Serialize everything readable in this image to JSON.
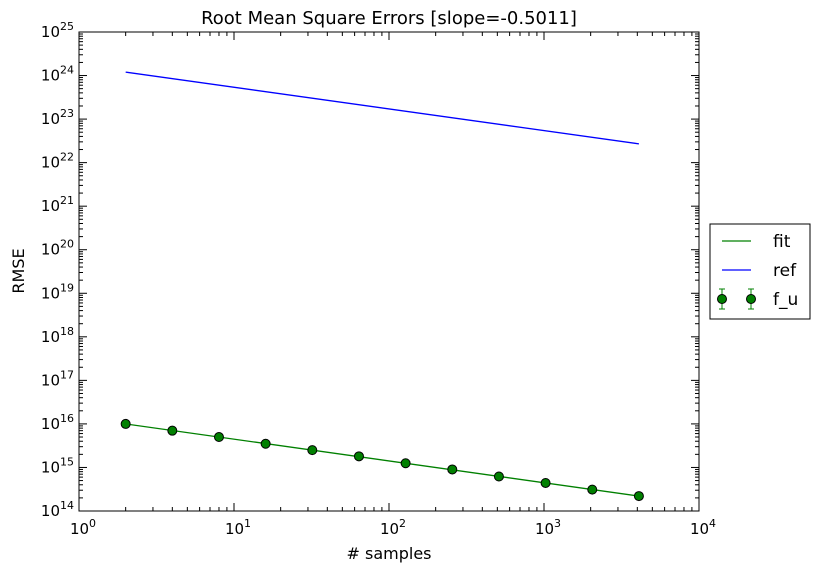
{
  "chart_data": {
    "type": "scatter",
    "title": "Root Mean Square Errors [slope=-0.5011]",
    "xlabel": "# samples",
    "ylabel": "RMSE",
    "xscale": "log",
    "yscale": "log",
    "xlim": [
      1,
      10000
    ],
    "ylim": [
      100000000000000.0,
      1e+25
    ],
    "grid": false,
    "legend_placement": "right, outside plot",
    "x_ticks": [
      {
        "base": "10",
        "exp": "0",
        "value": 1
      },
      {
        "base": "10",
        "exp": "1",
        "value": 10
      },
      {
        "base": "10",
        "exp": "2",
        "value": 100
      },
      {
        "base": "10",
        "exp": "3",
        "value": 1000
      },
      {
        "base": "10",
        "exp": "4",
        "value": 10000
      }
    ],
    "y_ticks": [
      {
        "base": "10",
        "exp": "14",
        "value": 100000000000000.0
      },
      {
        "base": "10",
        "exp": "15",
        "value": 1000000000000000.0
      },
      {
        "base": "10",
        "exp": "16",
        "value": 1e+16
      },
      {
        "base": "10",
        "exp": "17",
        "value": 1e+17
      },
      {
        "base": "10",
        "exp": "18",
        "value": 1e+18
      },
      {
        "base": "10",
        "exp": "19",
        "value": 1e+19
      },
      {
        "base": "10",
        "exp": "20",
        "value": 1e+20
      },
      {
        "base": "10",
        "exp": "21",
        "value": 1e+21
      },
      {
        "base": "10",
        "exp": "22",
        "value": 1e+22
      },
      {
        "base": "10",
        "exp": "23",
        "value": 1e+23
      },
      {
        "base": "10",
        "exp": "24",
        "value": 1e+24
      },
      {
        "base": "10",
        "exp": "25",
        "value": 1e+25
      }
    ],
    "series": [
      {
        "name": "fit",
        "kind": "line",
        "color": "#008000",
        "x": [
          2,
          4096
        ],
        "y": [
          1e+16,
          220000000000000.0
        ]
      },
      {
        "name": "ref",
        "kind": "line",
        "color": "#0000ff",
        "x": [
          2,
          4096
        ],
        "y": [
          1.2e+24,
          2.7e+22
        ]
      },
      {
        "name": "f_u",
        "kind": "errorbar-points",
        "color": "#008000",
        "x": [
          2,
          4,
          8,
          16,
          32,
          64,
          128,
          256,
          512,
          1024,
          2048,
          4096
        ],
        "y": [
          1e+16,
          7000000000000000.0,
          5000000000000000.0,
          3500000000000000.0,
          2500000000000000.0,
          1800000000000000.0,
          1250000000000000.0,
          900000000000000.0,
          620000000000000.0,
          440000000000000.0,
          310000000000000.0,
          220000000000000.0
        ]
      }
    ]
  }
}
